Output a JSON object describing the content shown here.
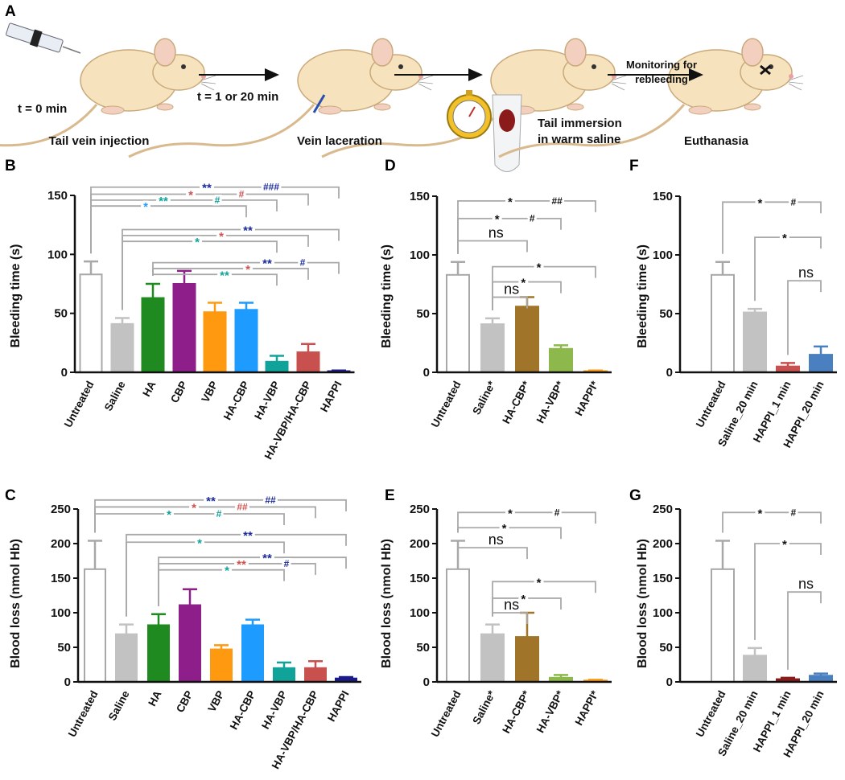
{
  "panel_a": {
    "label": "A",
    "t0": "t = 0 min",
    "step1": "Tail vein injection",
    "t1": "t = 1 or 20 min",
    "step2": "Vein laceration",
    "step3_line1": "Tail immersion",
    "step3_line2": "in warm saline",
    "monitor_line1": "Monitoring for",
    "monitor_line2": "rebleeding",
    "step4": "Euthanasia"
  },
  "chart_data": [
    {
      "id": "B",
      "panel_label": "B",
      "type": "bar",
      "ylabel": "Bleeding time (s)",
      "ylim": [
        0,
        150
      ],
      "yticks": [
        0,
        50,
        100,
        150
      ],
      "categories": [
        "Untreated",
        "Saline",
        "HA",
        "CBP",
        "VBP",
        "HA-CBP",
        "HA-VBP",
        "HA-VBP/HA-CBP",
        "HAPPI"
      ],
      "values": [
        83,
        41,
        63,
        75,
        51,
        53,
        9,
        17,
        1
      ],
      "errors": [
        11,
        5,
        12,
        11,
        8,
        6,
        5,
        7,
        0.5
      ],
      "colors": [
        "#ffffff",
        "#c2c2c2",
        "#1f8a1f",
        "#8e1f8a",
        "#ff9a10",
        "#1e9bff",
        "#10a39a",
        "#c8504f",
        "#1a1a8c"
      ],
      "significance": [
        {
          "from": 0,
          "to": 8,
          "level": 157,
          "star": "**",
          "star_color": "#1a2a9c",
          "hash": "###",
          "hash_color": "#1a2a9c"
        },
        {
          "from": 0,
          "to": 7,
          "level": 151,
          "star": "*",
          "star_color": "#d0504f",
          "hash": "#",
          "hash_color": "#d0504f"
        },
        {
          "from": 0,
          "to": 6,
          "level": 146,
          "star": "**",
          "star_color": "#10a39a",
          "hash": "#",
          "hash_color": "#10a39a"
        },
        {
          "from": 0,
          "to": 5,
          "level": 141,
          "star": "*",
          "star_color": "#1e9bff"
        },
        {
          "from": 1,
          "to": 8,
          "level": 121,
          "star": "**",
          "star_color": "#1a2a9c"
        },
        {
          "from": 1,
          "to": 7,
          "level": 116,
          "star": "*",
          "star_color": "#d0504f"
        },
        {
          "from": 1,
          "to": 6,
          "level": 111,
          "star": "*",
          "star_color": "#10a39a"
        },
        {
          "from": 2,
          "to": 8,
          "level": 93,
          "star": "**",
          "star_color": "#1a2a9c",
          "hash": "#",
          "hash_color": "#1a2a9c"
        },
        {
          "from": 2,
          "to": 7,
          "level": 88,
          "star": "*",
          "star_color": "#d0504f"
        },
        {
          "from": 2,
          "to": 6,
          "level": 83,
          "star": "**",
          "star_color": "#10a39a"
        }
      ]
    },
    {
      "id": "C",
      "panel_label": "C",
      "type": "bar",
      "ylabel": "Blood loss (nmol Hb)",
      "ylim": [
        0,
        250
      ],
      "yticks": [
        0,
        50,
        100,
        150,
        200,
        250
      ],
      "categories": [
        "Untreated",
        "Saline",
        "HA",
        "CBP",
        "VBP",
        "HA-CBP",
        "HA-VBP",
        "HA-VBP/HA-CBP",
        "HAPPI"
      ],
      "values": [
        163,
        69,
        82,
        111,
        47,
        82,
        20,
        20,
        5
      ],
      "errors": [
        41,
        14,
        16,
        23,
        6,
        8,
        8,
        10,
        2
      ],
      "colors": [
        "#ffffff",
        "#c2c2c2",
        "#1f8a1f",
        "#8e1f8a",
        "#ff9a10",
        "#1e9bff",
        "#10a39a",
        "#c8504f",
        "#1a1a8c"
      ],
      "significance": [
        {
          "from": 0,
          "to": 8,
          "level": 263,
          "star": "**",
          "star_color": "#1a2a9c",
          "hash": "##",
          "hash_color": "#1a2a9c"
        },
        {
          "from": 0,
          "to": 7,
          "level": 253,
          "star": "*",
          "star_color": "#d0504f",
          "hash": "##",
          "hash_color": "#d0504f"
        },
        {
          "from": 0,
          "to": 6,
          "level": 243,
          "star": "*",
          "star_color": "#10a39a",
          "hash": "#",
          "hash_color": "#10a39a"
        },
        {
          "from": 1,
          "to": 8,
          "level": 213,
          "star": "**",
          "star_color": "#1a2a9c"
        },
        {
          "from": 1,
          "to": 6,
          "level": 202,
          "star": "*",
          "star_color": "#10a39a"
        },
        {
          "from": 2,
          "to": 8,
          "level": 180,
          "star": "**",
          "star_color": "#1a2a9c"
        },
        {
          "from": 2,
          "to": 7,
          "level": 171,
          "star": "**",
          "star_color": "#d0504f",
          "hash": "#",
          "hash_color": "#1a2a9c"
        },
        {
          "from": 2,
          "to": 6,
          "level": 162,
          "star": "*",
          "star_color": "#10a39a"
        }
      ]
    },
    {
      "id": "D",
      "panel_label": "D",
      "type": "bar",
      "ylabel": "Bleeding time (s)",
      "ylim": [
        0,
        150
      ],
      "yticks": [
        0,
        50,
        100,
        150
      ],
      "categories": [
        "Untreated",
        "Saline*",
        "HA-CBP*",
        "HA-VBP*",
        "HAPPI*"
      ],
      "values": [
        83,
        41,
        56,
        20,
        1
      ],
      "errors": [
        11,
        5,
        8,
        3,
        0.5
      ],
      "colors": [
        "#ffffff",
        "#c2c2c2",
        "#a0752a",
        "#8cb84c",
        "#ff9a10"
      ],
      "significance": [
        {
          "from": 0,
          "to": 4,
          "level": 146,
          "star": "*",
          "star_color": "#111111",
          "hash": "##",
          "hash_color": "#111111"
        },
        {
          "from": 0,
          "to": 3,
          "level": 131,
          "star": "*",
          "star_color": "#111111",
          "hash": "#",
          "hash_color": "#111111"
        },
        {
          "from": 0,
          "to": 2,
          "level": 112,
          "star": "ns",
          "star_color": "#111111"
        },
        {
          "from": 1,
          "to": 4,
          "level": 90,
          "star": "*",
          "star_color": "#111111"
        },
        {
          "from": 1,
          "to": 3,
          "level": 77,
          "star": "*",
          "star_color": "#111111"
        },
        {
          "from": 1,
          "to": 2,
          "level": 64,
          "star": "ns",
          "star_color": "#111111"
        }
      ]
    },
    {
      "id": "E",
      "panel_label": "E",
      "type": "bar",
      "ylabel": "Blood loss (nmol Hb)",
      "ylim": [
        0,
        250
      ],
      "yticks": [
        0,
        50,
        100,
        150,
        200,
        250
      ],
      "categories": [
        "Untreated",
        "Saline*",
        "HA-CBP*",
        "HA-VBP*",
        "HAPPI*"
      ],
      "values": [
        163,
        69,
        65,
        6,
        2
      ],
      "errors": [
        41,
        14,
        35,
        4,
        1
      ],
      "colors": [
        "#ffffff",
        "#c2c2c2",
        "#a0752a",
        "#8cb84c",
        "#ff9a10"
      ],
      "significance": [
        {
          "from": 0,
          "to": 4,
          "level": 245,
          "star": "*",
          "star_color": "#111111",
          "hash": "#",
          "hash_color": "#111111"
        },
        {
          "from": 0,
          "to": 3,
          "level": 223,
          "star": "*",
          "star_color": "#111111"
        },
        {
          "from": 0,
          "to": 2,
          "level": 194,
          "star": "ns",
          "star_color": "#111111"
        },
        {
          "from": 1,
          "to": 4,
          "level": 145,
          "star": "*",
          "star_color": "#111111"
        },
        {
          "from": 1,
          "to": 3,
          "level": 121,
          "star": "*",
          "star_color": "#111111"
        },
        {
          "from": 1,
          "to": 2,
          "level": 100,
          "star": "ns",
          "star_color": "#111111"
        }
      ]
    },
    {
      "id": "F",
      "panel_label": "F",
      "type": "bar",
      "ylabel": "Bleeding time (s)",
      "ylim": [
        0,
        150
      ],
      "yticks": [
        0,
        50,
        100,
        150
      ],
      "categories": [
        "Untreated",
        "Saline_20 min",
        "HAPPI_1 min",
        "HAPPI_20 min"
      ],
      "values": [
        83,
        51,
        5,
        15
      ],
      "errors": [
        11,
        3,
        3,
        7
      ],
      "colors": [
        "#ffffff",
        "#c2c2c2",
        "#c8504f",
        "#4a7fc0"
      ],
      "significance": [
        {
          "from": 0,
          "to": 3,
          "level": 145,
          "star": "*",
          "star_color": "#111111",
          "hash": "#",
          "hash_color": "#111111"
        },
        {
          "from": 1,
          "to": 3,
          "level": 115,
          "star": "*",
          "star_color": "#111111"
        },
        {
          "from": 2,
          "to": 3,
          "level": 78,
          "star": "ns",
          "star_color": "#111111"
        }
      ]
    },
    {
      "id": "G",
      "panel_label": "G",
      "type": "bar",
      "ylabel": "Blood loss (nmol Hb)",
      "ylim": [
        0,
        250
      ],
      "yticks": [
        0,
        50,
        100,
        150,
        200,
        250
      ],
      "categories": [
        "Untreated",
        "Saline_20 min",
        "HAPPI_1 min",
        "HAPPI_20 min"
      ],
      "values": [
        163,
        38,
        4,
        9
      ],
      "errors": [
        41,
        11,
        2,
        3
      ],
      "colors": [
        "#ffffff",
        "#c2c2c2",
        "#8b1a1a",
        "#4a7fc0"
      ],
      "significance": [
        {
          "from": 0,
          "to": 3,
          "level": 245,
          "star": "*",
          "star_color": "#111111",
          "hash": "#",
          "hash_color": "#111111"
        },
        {
          "from": 1,
          "to": 3,
          "level": 200,
          "star": "*",
          "star_color": "#111111"
        },
        {
          "from": 2,
          "to": 3,
          "level": 130,
          "star": "ns",
          "star_color": "#111111"
        }
      ]
    }
  ]
}
